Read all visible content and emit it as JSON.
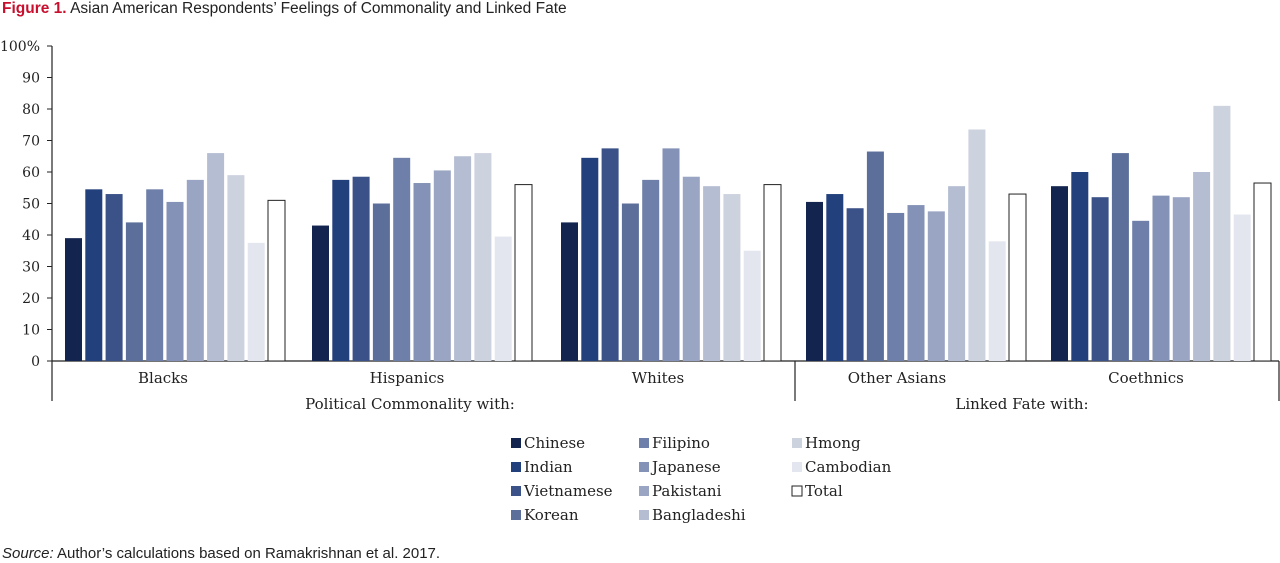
{
  "figure": {
    "label": "Figure 1.",
    "title": "Asian American Respondents’ Feelings of Commonality and Linked Fate",
    "source_label": "Source:",
    "source_text": "Author’s calculations based on Ramakrishnan et al. 2017."
  },
  "chart_data": {
    "type": "bar",
    "title": "Asian American Respondents’ Feelings of Commonality and Linked Fate",
    "xlabel": "",
    "ylabel": "",
    "ylim": [
      0,
      100
    ],
    "yticks": [
      "0",
      "10",
      "20",
      "30",
      "40",
      "50",
      "60",
      "70",
      "80",
      "90",
      "100%"
    ],
    "categories": [
      "Blacks",
      "Hispanics",
      "Whites",
      "Other Asians",
      "Coethnics"
    ],
    "category_groups": [
      {
        "label": "Political Commonality with:",
        "categories": [
          "Blacks",
          "Hispanics",
          "Whites"
        ]
      },
      {
        "label": "Linked Fate with:",
        "categories": [
          "Other Asians",
          "Coethnics"
        ]
      }
    ],
    "legend_position": "bottom",
    "grid": false,
    "series": [
      {
        "name": "Chinese",
        "color": "#13244f",
        "values": [
          39,
          43,
          44,
          50.5,
          55.5
        ]
      },
      {
        "name": "Indian",
        "color": "#22407c",
        "values": [
          54.5,
          57.5,
          64.5,
          53,
          60
        ]
      },
      {
        "name": "Vietnamese",
        "color": "#3a5288",
        "values": [
          53,
          58.5,
          67.5,
          48.5,
          52
        ]
      },
      {
        "name": "Korean",
        "color": "#5c6f9b",
        "values": [
          44,
          50,
          50,
          66.5,
          66
        ]
      },
      {
        "name": "Filipino",
        "color": "#6e7fa9",
        "values": [
          54.5,
          64.5,
          57.5,
          47,
          44.5
        ]
      },
      {
        "name": "Japanese",
        "color": "#8392b6",
        "values": [
          50.5,
          56.5,
          67.5,
          49.5,
          52.5
        ]
      },
      {
        "name": "Pakistani",
        "color": "#99a5c2",
        "values": [
          57.5,
          60.5,
          58.5,
          47.5,
          52
        ]
      },
      {
        "name": "Bangladeshi",
        "color": "#b4bdd1",
        "values": [
          66,
          65,
          55.5,
          55.5,
          60
        ]
      },
      {
        "name": "Hmong",
        "color": "#cdd2df",
        "values": [
          59,
          66,
          53,
          73.5,
          81
        ]
      },
      {
        "name": "Cambodian",
        "color": "#e3e6ee",
        "values": [
          37.5,
          39.5,
          35,
          38,
          46.5
        ]
      },
      {
        "name": "Total",
        "color": "#ffffff",
        "values": [
          51,
          56,
          56,
          53,
          56.5
        ]
      }
    ]
  }
}
